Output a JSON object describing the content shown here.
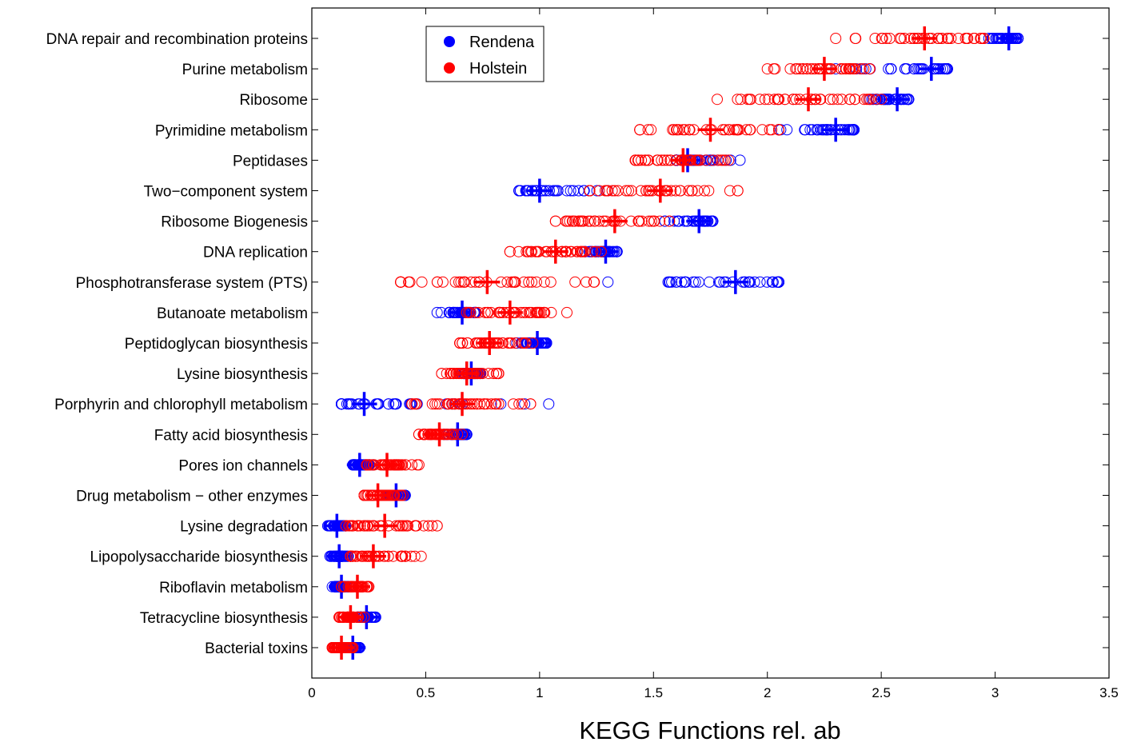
{
  "chart_data": {
    "type": "scatter",
    "title": "",
    "xlabel": "KEGG Functions rel. ab",
    "ylabel": "",
    "xlim": [
      0,
      3.5
    ],
    "xticks": [
      0,
      0.5,
      1,
      1.5,
      2,
      2.5,
      3,
      3.5
    ],
    "xtick_labels": [
      "0",
      "0.5",
      "1",
      "1.5",
      "2",
      "2.5",
      "3",
      "3.5"
    ],
    "grid": false,
    "legend_position": "top-left",
    "categories": [
      "DNA repair and recombination proteins",
      "Purine metabolism",
      "Ribosome",
      "Pyrimidine metabolism",
      "Peptidases",
      "Two−component system",
      "Ribosome Biogenesis",
      "DNA replication",
      "Phosphotransferase system (PTS)",
      "Butanoate metabolism",
      "Peptidoglycan biosynthesis",
      "Lysine biosynthesis",
      "Porphyrin and chlorophyll metabolism",
      "Fatty acid biosynthesis",
      "Pores ion channels",
      "Drug metabolism − other enzymes",
      "Lysine degradation",
      "Lipopolysaccharide biosynthesis",
      "Riboflavin metabolism",
      "Tetracycline biosynthesis",
      "Bacterial toxins"
    ],
    "series": [
      {
        "name": "Rendena",
        "color": "#0000ff",
        "mean": [
          3.06,
          2.72,
          2.57,
          2.3,
          1.65,
          1.0,
          1.7,
          1.29,
          1.86,
          0.66,
          0.99,
          0.7,
          0.23,
          0.64,
          0.21,
          0.37,
          0.11,
          0.12,
          0.13,
          0.24,
          0.18
        ],
        "range": [
          [
            2.95,
            3.1
          ],
          [
            2.3,
            2.79
          ],
          [
            2.45,
            2.62
          ],
          [
            2.05,
            2.38
          ],
          [
            1.6,
            1.88
          ],
          [
            0.91,
            1.3
          ],
          [
            1.55,
            1.76
          ],
          [
            1.2,
            1.34
          ],
          [
            1.3,
            2.05
          ],
          [
            0.55,
            0.72
          ],
          [
            0.9,
            1.03
          ],
          [
            0.66,
            0.74
          ],
          [
            0.13,
            1.04
          ],
          [
            0.58,
            0.68
          ],
          [
            0.18,
            0.27
          ],
          [
            0.33,
            0.41
          ],
          [
            0.07,
            0.15
          ],
          [
            0.08,
            0.16
          ],
          [
            0.09,
            0.16
          ],
          [
            0.2,
            0.28
          ],
          [
            0.15,
            0.21
          ]
        ]
      },
      {
        "name": "Holstein",
        "color": "#ff0000",
        "mean": [
          2.69,
          2.25,
          2.18,
          1.75,
          1.63,
          1.53,
          1.33,
          1.07,
          0.77,
          0.87,
          0.78,
          0.68,
          0.66,
          0.56,
          0.33,
          0.29,
          0.32,
          0.27,
          0.2,
          0.17,
          0.13
        ],
        "range": [
          [
            2.3,
            2.95
          ],
          [
            2.0,
            2.45
          ],
          [
            1.78,
            2.5
          ],
          [
            1.44,
            2.05
          ],
          [
            1.42,
            1.83
          ],
          [
            1.22,
            1.87
          ],
          [
            1.07,
            1.57
          ],
          [
            0.87,
            1.27
          ],
          [
            0.39,
            1.24
          ],
          [
            0.68,
            1.12
          ],
          [
            0.65,
            0.97
          ],
          [
            0.57,
            0.82
          ],
          [
            0.44,
            0.96
          ],
          [
            0.47,
            0.66
          ],
          [
            0.24,
            0.47
          ],
          [
            0.23,
            0.4
          ],
          [
            0.15,
            0.55
          ],
          [
            0.17,
            0.48
          ],
          [
            0.13,
            0.25
          ],
          [
            0.12,
            0.23
          ],
          [
            0.09,
            0.18
          ]
        ]
      }
    ]
  }
}
